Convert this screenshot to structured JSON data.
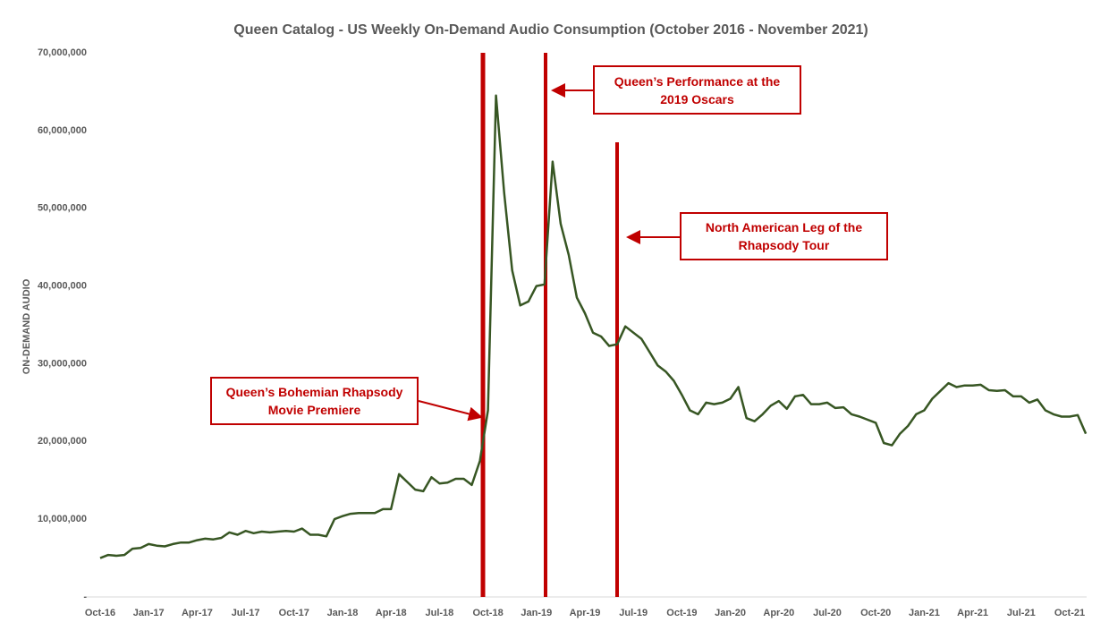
{
  "chart_data": {
    "type": "line",
    "title": "Queen Catalog - US Weekly On-Demand Audio Consumption (October 2016 - November 2021)",
    "y_label": "ON-DEMAND AUDIO",
    "annotations": [
      "Queen’s Bohemian Rhapsody Movie Premiere",
      "Queen’s Performance at the 2019 Oscars",
      "North American Leg of the Rhapsody Tour"
    ],
    "categories": [
      "Oct-16",
      null,
      null,
      null,
      null,
      null,
      "Jan-17",
      null,
      null,
      null,
      null,
      null,
      "Apr-17",
      null,
      null,
      null,
      null,
      null,
      "Jul-17",
      null,
      null,
      null,
      null,
      null,
      "Oct-17",
      null,
      null,
      null,
      null,
      null,
      "Jan-18",
      null,
      null,
      null,
      null,
      null,
      "Apr-18",
      null,
      null,
      null,
      null,
      null,
      "Jul-18",
      null,
      null,
      null,
      null,
      null,
      "Oct-18",
      null,
      null,
      null,
      null,
      null,
      "Jan-19",
      null,
      null,
      null,
      null,
      null,
      "Apr-19",
      null,
      null,
      null,
      null,
      null,
      "Jul-19",
      null,
      null,
      null,
      null,
      null,
      "Oct-19",
      null,
      null,
      null,
      null,
      null,
      "Jan-20",
      null,
      null,
      null,
      null,
      null,
      "Apr-20",
      null,
      null,
      null,
      null,
      null,
      "Jul-20",
      null,
      null,
      null,
      null,
      null,
      "Oct-20",
      null,
      null,
      null,
      null,
      null,
      "Jan-21",
      null,
      null,
      null,
      null,
      null,
      "Apr-21",
      null,
      null,
      null,
      null,
      null,
      "Jul-21",
      null,
      null,
      null,
      null,
      null,
      "Oct-21",
      null,
      null
    ],
    "series": [
      {
        "name": "On-Demand Audio",
        "color": "#375623",
        "values": [
          5000000,
          5400000,
          5300000,
          5400000,
          6200000,
          6300000,
          6800000,
          6600000,
          6500000,
          6800000,
          7000000,
          7000000,
          7300000,
          7500000,
          7400000,
          7600000,
          8300000,
          8000000,
          8500000,
          8200000,
          8400000,
          8300000,
          8400000,
          8500000,
          8400000,
          8800000,
          8000000,
          8000000,
          7800000,
          10000000,
          10400000,
          10700000,
          10800000,
          10800000,
          10800000,
          11300000,
          11300000,
          15800000,
          14800000,
          13800000,
          13600000,
          15400000,
          14600000,
          14700000,
          15200000,
          15200000,
          14400000,
          17500000,
          24000000,
          64500000,
          52000000,
          42000000,
          37500000,
          38000000,
          40000000,
          40200000,
          56000000,
          48000000,
          44000000,
          38500000,
          36500000,
          34000000,
          33500000,
          32300000,
          32500000,
          34800000,
          34000000,
          33200000,
          31500000,
          29800000,
          29000000,
          27800000,
          26000000,
          24000000,
          23500000,
          25000000,
          24800000,
          25000000,
          25500000,
          27000000,
          23000000,
          22600000,
          23500000,
          24600000,
          25200000,
          24200000,
          25800000,
          26000000,
          24800000,
          24800000,
          25000000,
          24300000,
          24400000,
          23500000,
          23200000,
          22800000,
          22400000,
          19800000,
          19500000,
          21000000,
          22000000,
          23500000,
          24000000,
          25500000,
          26500000,
          27500000,
          27000000,
          27200000,
          27200000,
          27300000,
          26600000,
          26500000,
          26600000,
          25800000,
          25800000,
          25000000,
          25400000,
          24000000,
          23500000,
          23200000,
          23200000,
          23400000,
          21000000
        ]
      }
    ],
    "ylim": [
      0,
      70000000
    ],
    "yticks": [
      {
        "value": 0,
        "label": "-"
      },
      {
        "value": 10000000,
        "label": "10,000,000"
      },
      {
        "value": 20000000,
        "label": "20,000,000"
      },
      {
        "value": 30000000,
        "label": "30,000,000"
      },
      {
        "value": 40000000,
        "label": "40,000,000"
      },
      {
        "value": 50000000,
        "label": "50,000,000"
      },
      {
        "value": 60000000,
        "label": "60,000,000"
      },
      {
        "value": 70000000,
        "label": "70,000,000"
      }
    ],
    "grid": false
  }
}
